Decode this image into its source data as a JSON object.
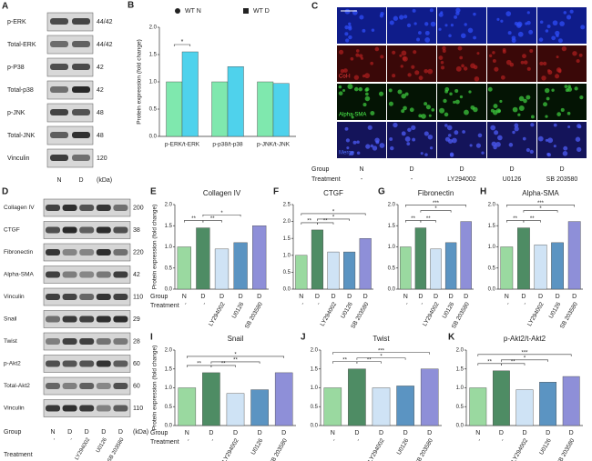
{
  "row_headers": {
    "group": "Group",
    "treatment": "Treatment"
  },
  "panel_a": {
    "letter": "A",
    "unit": "(kDa)",
    "lanes": [
      "N",
      "D"
    ],
    "rows": [
      {
        "label": "p-ERK",
        "kda": "44/42"
      },
      {
        "label": "Total-ERK",
        "kda": "44/42"
      },
      {
        "label": "p-P38",
        "kda": "42"
      },
      {
        "label": "Total-p38",
        "kda": "42"
      },
      {
        "label": "p-JNK",
        "kda": "48"
      },
      {
        "label": "Total-JNK",
        "kda": "48"
      },
      {
        "label": "Vinculin",
        "kda": "120"
      }
    ]
  },
  "panel_c": {
    "letter": "C",
    "row_labels": [
      "Col-I",
      "Alpha-SMA",
      "Merge"
    ],
    "groups": [
      "N",
      "D",
      "D",
      "D",
      "D"
    ],
    "treatments": [
      "-",
      "-",
      "LY294002",
      "U0126",
      "SB 203580"
    ]
  },
  "panel_d": {
    "letter": "D",
    "unit": "(kDa)",
    "rows": [
      {
        "label": "Collagen IV",
        "kda": "200"
      },
      {
        "label": "CTGF",
        "kda": "38"
      },
      {
        "label": "Fibronectin",
        "kda": "220"
      },
      {
        "label": "Alpha-SMA",
        "kda": "42"
      },
      {
        "label": "Vinculin",
        "kda": "110"
      },
      {
        "label": "Snail",
        "kda": "29"
      },
      {
        "label": "Twist",
        "kda": "28"
      },
      {
        "label": "p-Akt2",
        "kda": "60"
      },
      {
        "label": "Total-Akt2",
        "kda": "60"
      },
      {
        "label": "Vinculin",
        "kda": "110"
      }
    ],
    "groups": [
      "N",
      "D",
      "D",
      "D",
      "D"
    ],
    "treatments": [
      "-",
      "-",
      "LY294002",
      "U0126",
      "SB 203580"
    ]
  },
  "chart_data": [
    {
      "type": "grouped-bar",
      "letter": "B",
      "ylabel": "Protein expression (fold change)",
      "categories": [
        "p-ERK/t-ERK",
        "p-p38/t-p38",
        "p-JNK/t-JNK"
      ],
      "series": [
        {
          "name": "WT N",
          "color": "#7fe8ae",
          "values": [
            1.0,
            1.0,
            1.0
          ]
        },
        {
          "name": "WT D",
          "color": "#4fd2ec",
          "values": [
            1.55,
            1.28,
            0.97
          ]
        }
      ],
      "ylim": [
        0,
        2.0
      ],
      "yticks": [
        {
          "value": 0,
          "label": "0.0"
        },
        0.5,
        {
          "value": 1,
          "label": "1.0"
        },
        1.5,
        {
          "value": 2,
          "label": "2.0"
        }
      ],
      "annotations": [
        "*"
      ]
    },
    {
      "type": "bar",
      "letter": "E",
      "title": "Collagen IV",
      "ylabel": "Protein expression (fold change)",
      "categories": [
        "N",
        "D",
        "D",
        "D",
        "D"
      ],
      "treatments": [
        "-",
        "-",
        "LY294002",
        "U0126",
        "SB 203580"
      ],
      "values": [
        1.0,
        1.45,
        0.95,
        1.1,
        1.5
      ],
      "colors": [
        "#9ad9a0",
        "#4e8c64",
        "#cfe3f5",
        "#5b94c2",
        "#8e8fd8"
      ],
      "ylim": [
        0,
        2.0
      ],
      "yticks": [
        {
          "value": 0,
          "label": "0.0"
        },
        0.5,
        {
          "value": 1,
          "label": "1.0"
        },
        1.5,
        {
          "value": 2,
          "label": "2.0"
        }
      ],
      "annotations": [
        "**",
        "**",
        "*"
      ]
    },
    {
      "type": "bar",
      "letter": "F",
      "title": "CTGF",
      "categories": [
        "N",
        "D",
        "D",
        "D",
        "D"
      ],
      "treatments": [
        "-",
        "-",
        "LY294002",
        "U0126",
        "SB 203580"
      ],
      "values": [
        1.0,
        1.75,
        1.1,
        1.1,
        1.5
      ],
      "colors": [
        "#9ad9a0",
        "#4e8c64",
        "#cfe3f5",
        "#5b94c2",
        "#8e8fd8"
      ],
      "ylim": [
        0,
        2.5
      ],
      "yticks": [
        {
          "value": 0,
          "label": "0.0"
        },
        0.5,
        {
          "value": 1,
          "label": "1.0"
        },
        1.5,
        {
          "value": 2,
          "label": "2.0"
        },
        2.5
      ],
      "annotations": [
        "**",
        "**",
        "*",
        "*"
      ]
    },
    {
      "type": "bar",
      "letter": "G",
      "title": "Fibronectin",
      "categories": [
        "N",
        "D",
        "D",
        "D",
        "D"
      ],
      "treatments": [
        "-",
        "-",
        "LY294002",
        "U0126",
        "SB 203580"
      ],
      "values": [
        1.0,
        1.45,
        0.95,
        1.1,
        1.6
      ],
      "colors": [
        "#9ad9a0",
        "#4e8c64",
        "#cfe3f5",
        "#5b94c2",
        "#8e8fd8"
      ],
      "ylim": [
        0,
        2.0
      ],
      "yticks": [
        {
          "value": 0,
          "label": "0.0"
        },
        0.5,
        {
          "value": 1,
          "label": "1.0"
        },
        1.5,
        {
          "value": 2,
          "label": "2.0"
        }
      ],
      "annotations": [
        "**",
        "**",
        "*",
        "***"
      ]
    },
    {
      "type": "bar",
      "letter": "H",
      "title": "Alpha-SMA",
      "categories": [
        "N",
        "D",
        "D",
        "D",
        "D"
      ],
      "treatments": [
        "-",
        "-",
        "LY294002",
        "U0126",
        "SB 203580"
      ],
      "values": [
        1.0,
        1.45,
        1.05,
        1.1,
        1.6
      ],
      "colors": [
        "#9ad9a0",
        "#4e8c64",
        "#cfe3f5",
        "#5b94c2",
        "#8e8fd8"
      ],
      "ylim": [
        0,
        2.0
      ],
      "yticks": [
        {
          "value": 0,
          "label": "0.0"
        },
        0.5,
        {
          "value": 1,
          "label": "1.0"
        },
        1.5,
        {
          "value": 2,
          "label": "2.0"
        }
      ],
      "annotations": [
        "**",
        "**",
        "*",
        "***"
      ]
    },
    {
      "type": "bar",
      "letter": "I",
      "title": "Snail",
      "ylabel": "Protein expression (fold change)",
      "categories": [
        "N",
        "D",
        "D",
        "D",
        "D"
      ],
      "treatments": [
        "-",
        "-",
        "LY294002",
        "U0126",
        "SB 203580"
      ],
      "values": [
        1.0,
        1.4,
        0.85,
        0.95,
        1.4
      ],
      "colors": [
        "#9ad9a0",
        "#4e8c64",
        "#cfe3f5",
        "#5b94c2",
        "#8e8fd8"
      ],
      "ylim": [
        0,
        2.0
      ],
      "yticks": [
        {
          "value": 0,
          "label": "0.0"
        },
        0.5,
        {
          "value": 1,
          "label": "1.0"
        },
        1.5,
        {
          "value": 2,
          "label": "2.0"
        }
      ],
      "annotations": [
        "**",
        "**",
        "**",
        "*"
      ]
    },
    {
      "type": "bar",
      "letter": "J",
      "title": "Twist",
      "categories": [
        "N",
        "D",
        "D",
        "D",
        "D"
      ],
      "treatments": [
        "-",
        "-",
        "LY294002",
        "U0126",
        "SB 203580"
      ],
      "values": [
        1.0,
        1.5,
        1.0,
        1.05,
        1.5
      ],
      "colors": [
        "#9ad9a0",
        "#4e8c64",
        "#cfe3f5",
        "#5b94c2",
        "#8e8fd8"
      ],
      "ylim": [
        0,
        2.0
      ],
      "yticks": [
        {
          "value": 0,
          "label": "0.0"
        },
        0.5,
        {
          "value": 1,
          "label": "1.0"
        },
        1.5,
        {
          "value": 2,
          "label": "2.0"
        }
      ],
      "annotations": [
        "**",
        "**",
        "*",
        "***"
      ]
    },
    {
      "type": "bar",
      "letter": "K",
      "title": "p-Akt2/t-Akt2",
      "categories": [
        "N",
        "D",
        "D",
        "D",
        "D"
      ],
      "treatments": [
        "-",
        "-",
        "LY294002",
        "U0126",
        "SB 203580"
      ],
      "values": [
        1.0,
        1.45,
        0.95,
        1.15,
        1.3
      ],
      "colors": [
        "#9ad9a0",
        "#4e8c64",
        "#cfe3f5",
        "#5b94c2",
        "#8e8fd8"
      ],
      "ylim": [
        0,
        2.0
      ],
      "yticks": [
        {
          "value": 0,
          "label": "0.0"
        },
        0.5,
        {
          "value": 1,
          "label": "1.0"
        },
        1.5,
        {
          "value": 2,
          "label": "2.0"
        }
      ],
      "annotations": [
        "**",
        "**",
        "*",
        "***"
      ]
    }
  ]
}
